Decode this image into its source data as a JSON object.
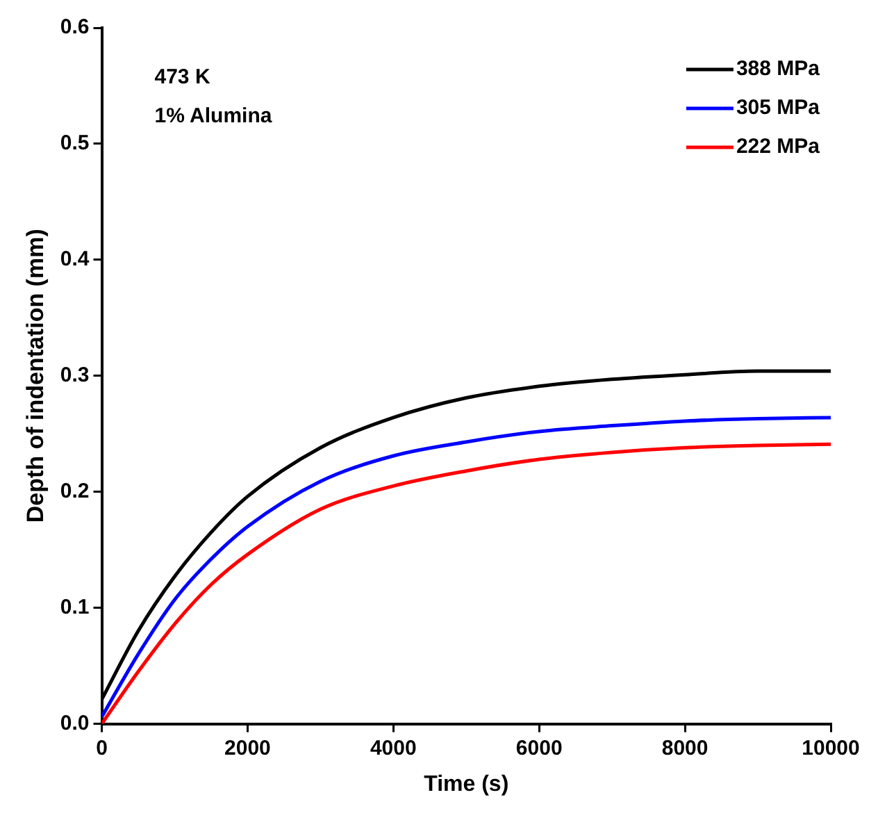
{
  "chart_data": {
    "type": "line",
    "xlabel": "Time (s)",
    "ylabel": "Depth of indentation (mm)",
    "annotations": [
      "473 K",
      "1% Alumina"
    ],
    "x": [
      0,
      500,
      1000,
      1500,
      2000,
      3000,
      4000,
      5000,
      6000,
      7000,
      8000,
      9000,
      10000
    ],
    "series": [
      {
        "name": "388 MPa",
        "color": "#000000",
        "values": [
          0.021,
          0.08,
          0.127,
          0.165,
          0.196,
          0.238,
          0.264,
          0.281,
          0.291,
          0.297,
          0.301,
          0.304,
          0.304
        ]
      },
      {
        "name": "305 MPa",
        "color": "#0000ff",
        "values": [
          0.006,
          0.06,
          0.107,
          0.142,
          0.17,
          0.209,
          0.231,
          0.243,
          0.252,
          0.257,
          0.261,
          0.263,
          0.264
        ]
      },
      {
        "name": "222 MPa",
        "color": "#ff0000",
        "values": [
          0,
          0.045,
          0.086,
          0.12,
          0.146,
          0.185,
          0.205,
          0.218,
          0.228,
          0.234,
          0.238,
          0.24,
          0.241
        ]
      }
    ],
    "xlim": [
      0,
      10000
    ],
    "xticks": [
      0,
      2000,
      4000,
      6000,
      8000,
      10000
    ],
    "ylim": [
      0,
      0.6
    ],
    "yticks": [
      {
        "value": 0,
        "label": "0.0"
      },
      {
        "value": 0.1,
        "label": "0.1"
      },
      {
        "value": 0.2,
        "label": "0.2"
      },
      {
        "value": 0.3,
        "label": "0.3"
      },
      {
        "value": 0.4,
        "label": "0.4"
      },
      {
        "value": 0.5,
        "label": "0.5"
      },
      {
        "value": 0.6,
        "label": "0.6"
      }
    ],
    "grid": false,
    "legend": "top right",
    "marker": "none",
    "line_style": "solid"
  }
}
